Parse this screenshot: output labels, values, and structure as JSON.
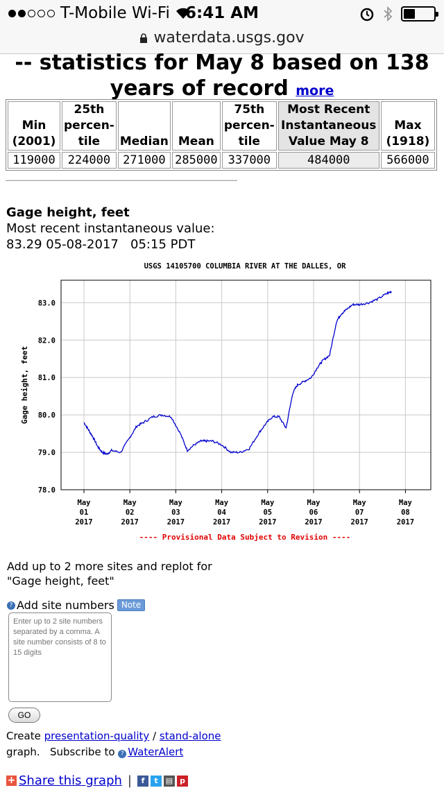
{
  "status_bar": {
    "carrier": "T-Mobile Wi-Fi",
    "time": "6:41 AM",
    "url": "waterdata.usgs.gov"
  },
  "stats": {
    "title_line1": "-- statistics for May 8 based on 138",
    "title_line2": "years of record",
    "more_link": "more",
    "headers": {
      "min": [
        "Min",
        "(2001)"
      ],
      "p25": [
        "25th",
        "percen-",
        "tile"
      ],
      "median": [
        "Median"
      ],
      "mean": [
        "Mean"
      ],
      "p75": [
        "75th",
        "percen-",
        "tile"
      ],
      "recent": [
        "Most Recent",
        "Instantaneous",
        "Value May 8"
      ],
      "max": [
        "Max",
        "(1918)"
      ]
    },
    "values": {
      "min": "119000",
      "p25": "224000",
      "median": "271000",
      "mean": "285000",
      "p75": "337000",
      "recent": "484000",
      "max": "566000"
    }
  },
  "gage": {
    "heading": "Gage height, feet",
    "recent_label": "Most recent instantaneous value:",
    "recent_value": "83.29 05-08-2017   05:15 PDT"
  },
  "chart_data": {
    "type": "line",
    "title": "USGS 14105700 COLUMBIA RIVER AT THE DALLES, OR",
    "ylabel": "Gage height, feet",
    "ylim": [
      78.0,
      83.6
    ],
    "yticks": [
      "78.0",
      "79.0",
      "80.0",
      "81.0",
      "82.0",
      "83.0"
    ],
    "xticks": [
      [
        "May",
        "01",
        "2017"
      ],
      [
        "May",
        "02",
        "2017"
      ],
      [
        "May",
        "03",
        "2017"
      ],
      [
        "May",
        "04",
        "2017"
      ],
      [
        "May",
        "05",
        "2017"
      ],
      [
        "May",
        "06",
        "2017"
      ],
      [
        "May",
        "07",
        "2017"
      ],
      [
        "May",
        "08",
        "2017"
      ]
    ],
    "x_days": [
      0,
      0.1,
      0.2,
      0.3,
      0.4,
      0.5,
      0.6,
      0.8,
      1.0,
      1.15,
      1.3,
      1.5,
      1.7,
      1.9,
      2.1,
      2.25,
      2.4,
      2.55,
      2.65,
      2.8,
      3.0,
      3.2,
      3.4,
      3.6,
      3.8,
      3.95,
      4.1,
      4.25,
      4.4,
      4.55,
      4.65,
      4.8,
      4.95,
      5.1,
      5.2,
      5.35,
      5.5,
      5.6,
      5.7,
      5.85,
      6.0,
      6.2,
      6.4,
      6.6,
      6.7
    ],
    "y": [
      79.8,
      79.6,
      79.4,
      79.15,
      79.0,
      78.95,
      79.05,
      79.0,
      79.4,
      79.7,
      79.8,
      79.95,
      80.0,
      79.95,
      79.5,
      79.05,
      79.2,
      79.3,
      79.3,
      79.3,
      79.2,
      79.0,
      79.0,
      79.1,
      79.5,
      79.75,
      79.95,
      79.95,
      79.65,
      80.6,
      80.8,
      80.9,
      81.0,
      81.3,
      81.45,
      81.6,
      82.5,
      82.7,
      82.8,
      82.95,
      82.95,
      83.0,
      83.1,
      83.25,
      83.3
    ],
    "note": "---- Provisional Data Subject to Revision ----",
    "line_color": "#0000cc",
    "grid": true
  },
  "form": {
    "add_text_1": "Add up to 2 more sites and replot for",
    "add_text_2": "\"Gage height, feet\"",
    "add_site_label": "Add site numbers",
    "note_badge": "Note",
    "textarea_placeholder": "Enter up to 2 site numbers separated by a comma. A site number consists of 8 to 15 digits",
    "go_label": "GO",
    "create_prefix": "Create ",
    "presentation_link": "presentation-quality",
    "slash": " / ",
    "standalone_link": "stand-alone",
    "graph_text": "graph.   Subscribe to ",
    "wateralert_link": "WaterAlert",
    "share_link": "Share this graph"
  }
}
